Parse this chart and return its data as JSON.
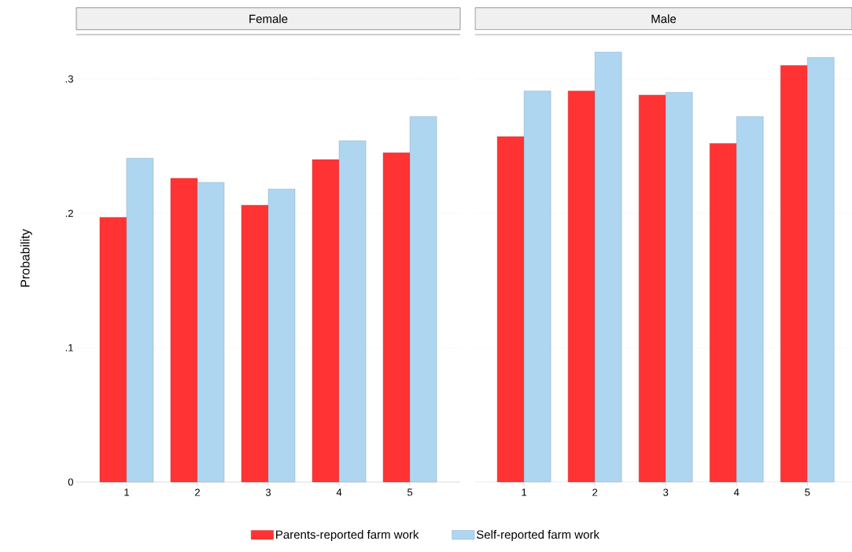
{
  "chart_data": [
    {
      "type": "bar",
      "title": "Female",
      "ylabel": "Probability",
      "categories": [
        "1",
        "2",
        "3",
        "4",
        "5"
      ],
      "series": [
        {
          "name": "Parents-reported farm work",
          "color": "#ff3333",
          "values": [
            0.197,
            0.226,
            0.206,
            0.24,
            0.245
          ]
        },
        {
          "name": "Self-reported farm work",
          "color": "#aed6f1",
          "values": [
            0.241,
            0.223,
            0.218,
            0.254,
            0.272
          ]
        }
      ],
      "ylim": [
        0,
        0.333
      ],
      "yticks": [
        {
          "value": 0,
          "label": "0"
        },
        {
          "value": 0.1,
          "label": ".1"
        },
        {
          "value": 0.2,
          "label": ".2"
        },
        {
          "value": 0.3,
          "label": ".3"
        }
      ],
      "grid": "y",
      "legend": "bottom"
    },
    {
      "type": "bar",
      "title": "Male",
      "categories": [
        "1",
        "2",
        "3",
        "4",
        "5"
      ],
      "series": [
        {
          "color": "#ff3333",
          "values": [
            0.257,
            0.291,
            0.288,
            0.252,
            0.31
          ]
        },
        {
          "color": "#aed6f1",
          "values": [
            0.291,
            0.32,
            0.29,
            0.272,
            0.316
          ]
        }
      ],
      "ylim": [
        0,
        0.333
      ],
      "yticks": [
        0,
        0.1,
        0.2,
        0.3
      ],
      "grid": "y",
      "tick_labels": "x"
    }
  ]
}
